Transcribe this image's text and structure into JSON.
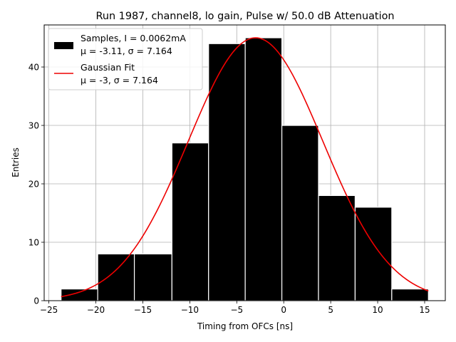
{
  "chart_data": {
    "type": "bar",
    "title": "Run 1987, channel8, lo gain, Pulse w/ 50.0 dB Attenuation",
    "xlabel": "Timing from OFCs [ns]",
    "ylabel": "Entries",
    "xlim": [
      -25.5,
      17.2
    ],
    "ylim": [
      0,
      47.2
    ],
    "xticks": [
      -25,
      -20,
      -15,
      -10,
      -5,
      0,
      5,
      10,
      15
    ],
    "yticks": [
      0,
      10,
      20,
      30,
      40
    ],
    "grid": true,
    "legend_position": "upper-left",
    "histogram": {
      "name": "Samples, I = 0.0062mA",
      "stats_label": "μ = -3.11, σ = 7.164",
      "color": "#000000",
      "edge_color": "#ffffff",
      "bins": [
        {
          "x0": -23.7,
          "x1": -19.8,
          "count": 2
        },
        {
          "x0": -19.8,
          "x1": -15.9,
          "count": 8
        },
        {
          "x0": -15.9,
          "x1": -11.9,
          "count": 8
        },
        {
          "x0": -11.9,
          "x1": -8.0,
          "count": 27
        },
        {
          "x0": -8.0,
          "x1": -4.1,
          "count": 44
        },
        {
          "x0": -4.1,
          "x1": -0.2,
          "count": 45
        },
        {
          "x0": -0.2,
          "x1": 3.7,
          "count": 30
        },
        {
          "x0": 3.7,
          "x1": 7.6,
          "count": 18
        },
        {
          "x0": 7.6,
          "x1": 11.5,
          "count": 16
        },
        {
          "x0": 11.5,
          "x1": 15.4,
          "count": 2
        }
      ]
    },
    "fit": {
      "name": "Gaussian Fit",
      "stats_label": "μ = -3, σ = 7.164",
      "color": "#ee0000",
      "mu": -3,
      "sigma": 7.164,
      "amplitude": 45,
      "x_range": [
        -23.7,
        15.4
      ]
    }
  }
}
